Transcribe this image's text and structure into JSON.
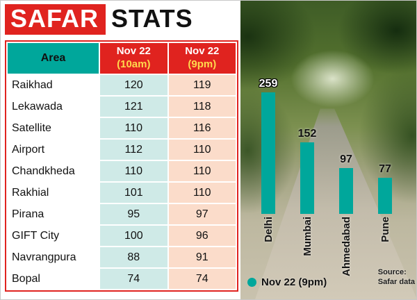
{
  "title": {
    "highlight": "SAFAR",
    "rest": "STATS"
  },
  "table": {
    "header": {
      "area": "Area",
      "col1_line1": "Nov 22",
      "col1_line2": "(10am)",
      "col2_line1": "Nov 22",
      "col2_line2": "(9pm)"
    },
    "rows": [
      {
        "area": "Raikhad",
        "am": "120",
        "pm": "119"
      },
      {
        "area": "Lekawada",
        "am": "121",
        "pm": "118"
      },
      {
        "area": "Satellite",
        "am": "110",
        "pm": "116"
      },
      {
        "area": "Airport",
        "am": "112",
        "pm": "110"
      },
      {
        "area": "Chandkheda",
        "am": "110",
        "pm": "110"
      },
      {
        "area": "Rakhial",
        "am": "101",
        "pm": "110"
      },
      {
        "area": "Pirana",
        "am": "95",
        "pm": "97"
      },
      {
        "area": "GIFT City",
        "am": "100",
        "pm": "96"
      },
      {
        "area": "Navrangpura",
        "am": "88",
        "pm": "91"
      },
      {
        "area": "Bopal",
        "am": "74",
        "pm": "74"
      }
    ]
  },
  "chart_data": {
    "type": "bar",
    "categories": [
      "Delhi",
      "Mumbai",
      "Ahmedabad",
      "Pune"
    ],
    "values": [
      259,
      152,
      97,
      77
    ],
    "series_label": "Nov 22 (9pm)",
    "legend_position": "bottom-left",
    "ylim": [
      0,
      300
    ],
    "bar_color": "#00a79b",
    "source_line1": "Source:",
    "source_line2": "Safar data"
  },
  "colors": {
    "accent_red": "#e0231f",
    "teal": "#00a79b",
    "cell_teal": "#cfeae7",
    "cell_salmon": "#fbdcca",
    "header_yellow": "#ffd94d"
  }
}
